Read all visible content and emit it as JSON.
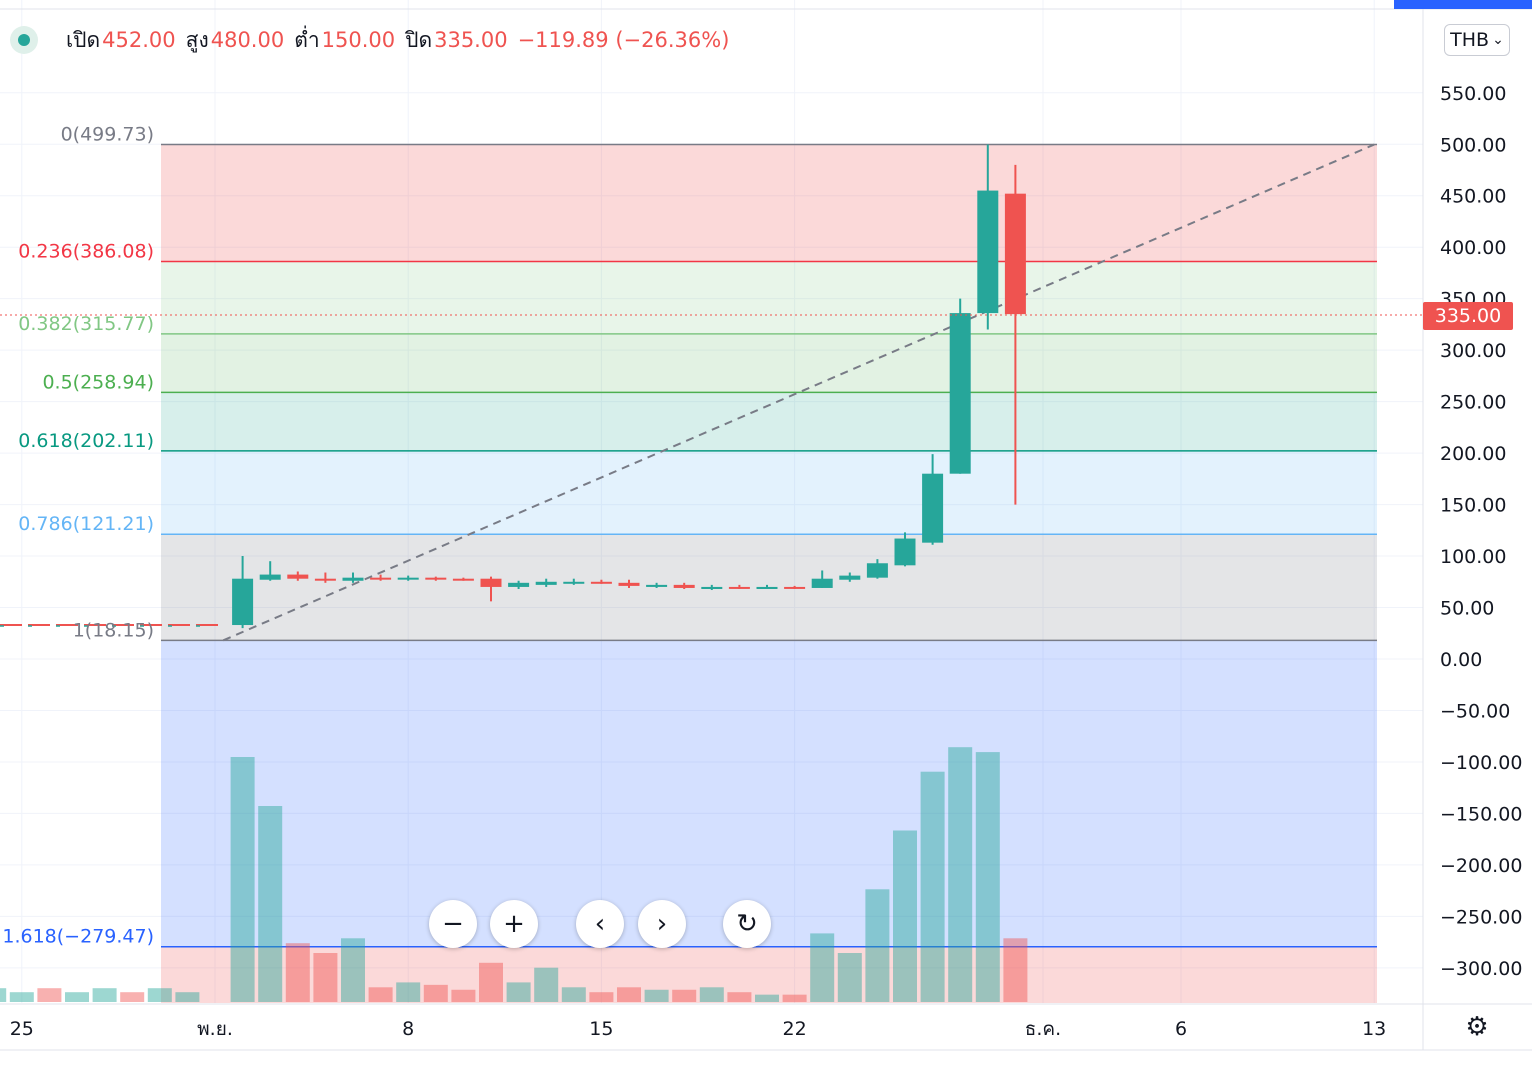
{
  "header": {
    "open_label": "เปิด",
    "open_value": "452.00",
    "high_label": "สูง",
    "high_value": "480.00",
    "low_label": "ต่ำ",
    "low_value": "150.00",
    "close_label": "ปิด",
    "close_value": "335.00",
    "change_value": "−119.89 (−26.36%)"
  },
  "currency_button": "THB",
  "current_price_tag": "335.00",
  "colors": {
    "up": "#26a69a",
    "down": "#ef5350",
    "accent": "#2962ff"
  },
  "nav_controls": [
    "minus-icon",
    "plus-icon",
    "chevron-left-icon",
    "chevron-right-icon",
    "reset-icon"
  ],
  "chart_data": {
    "type": "candlestick",
    "yaxis": {
      "ticks": [
        "550.00",
        "500.00",
        "450.00",
        "400.00",
        "350.00",
        "300.00",
        "250.00",
        "200.00",
        "150.00",
        "100.00",
        "50.00",
        "0.00",
        "−50.00",
        "−100.00",
        "−150.00",
        "−200.00",
        "−250.00",
        "−300.00"
      ],
      "ylim": [
        -335,
        595
      ]
    },
    "xaxis": {
      "ticks": [
        {
          "label": "25",
          "day": -7
        },
        {
          "label": "พ.ย.",
          "day": 0
        },
        {
          "label": "8",
          "day": 7
        },
        {
          "label": "15",
          "day": 14
        },
        {
          "label": "22",
          "day": 21
        },
        {
          "label": "ธ.ค.",
          "day": 30
        },
        {
          "label": "6",
          "day": 35
        },
        {
          "label": "13",
          "day": 42
        }
      ]
    },
    "fib_levels": [
      {
        "label": "0(499.73)",
        "value": 499.73,
        "color": "#787b86",
        "fill": "rgba(239,83,80,0.22)"
      },
      {
        "label": "0.236(386.08)",
        "value": 386.08,
        "color": "#f23645",
        "fill": "rgba(129,199,132,0.18)"
      },
      {
        "label": "0.382(315.77)",
        "value": 315.77,
        "color": "#81c784",
        "fill": "rgba(76,175,80,0.16)"
      },
      {
        "label": "0.5(258.94)",
        "value": 258.94,
        "color": "#4caf50",
        "fill": "rgba(8,153,129,0.16)"
      },
      {
        "label": "0.618(202.11)",
        "value": 202.11,
        "color": "#089981",
        "fill": "rgba(100,181,246,0.18)"
      },
      {
        "label": "0.786(121.21)",
        "value": 121.21,
        "color": "#64b5f6",
        "fill": "rgba(120,123,134,0.2)"
      },
      {
        "label": "1(18.15)",
        "value": 18.15,
        "color": "#787b86",
        "fill": "rgba(41,98,255,0.2)"
      },
      {
        "label": "1.618(−279.47)",
        "value": -279.47,
        "color": "#2962ff",
        "fill": "rgba(239,83,80,0.22)"
      }
    ],
    "candles": [
      {
        "day": 1,
        "o": 33,
        "h": 100,
        "l": 30,
        "c": 78,
        "v": 10
      },
      {
        "day": 2,
        "o": 77,
        "h": 95,
        "l": 76,
        "c": 82,
        "v": 8
      },
      {
        "day": 3,
        "o": 82,
        "h": 85,
        "l": 76,
        "c": 78,
        "v": 2.4
      },
      {
        "day": 4,
        "o": 78,
        "h": 84,
        "l": 74,
        "c": 77,
        "v": 2
      },
      {
        "day": 5,
        "o": 76,
        "h": 84,
        "l": 74,
        "c": 79,
        "v": 2.6
      },
      {
        "day": 6,
        "o": 79,
        "h": 82,
        "l": 76,
        "c": 78,
        "v": 0.6
      },
      {
        "day": 7,
        "o": 78,
        "h": 81,
        "l": 76,
        "c": 79,
        "v": 0.8
      },
      {
        "day": 8,
        "o": 79,
        "h": 80,
        "l": 76,
        "c": 78,
        "v": 0.7
      },
      {
        "day": 9,
        "o": 78,
        "h": 79,
        "l": 76,
        "c": 77,
        "v": 0.5
      },
      {
        "day": 10,
        "o": 78,
        "h": 80,
        "l": 56,
        "c": 70,
        "v": 1.6
      },
      {
        "day": 11,
        "o": 70,
        "h": 76,
        "l": 68,
        "c": 74,
        "v": 0.8
      },
      {
        "day": 12,
        "o": 72,
        "h": 78,
        "l": 70,
        "c": 75,
        "v": 1.4
      },
      {
        "day": 13,
        "o": 74,
        "h": 78,
        "l": 72,
        "c": 75,
        "v": 0.6
      },
      {
        "day": 14,
        "o": 75,
        "h": 77,
        "l": 73,
        "c": 74,
        "v": 0.4
      },
      {
        "day": 15,
        "o": 74,
        "h": 77,
        "l": 69,
        "c": 71,
        "v": 0.6
      },
      {
        "day": 16,
        "o": 70,
        "h": 74,
        "l": 69,
        "c": 72,
        "v": 0.5
      },
      {
        "day": 17,
        "o": 72,
        "h": 74,
        "l": 68,
        "c": 69,
        "v": 0.5
      },
      {
        "day": 18,
        "o": 68,
        "h": 72,
        "l": 67,
        "c": 70,
        "v": 0.6
      },
      {
        "day": 19,
        "o": 70,
        "h": 72,
        "l": 68,
        "c": 69,
        "v": 0.4
      },
      {
        "day": 20,
        "o": 68,
        "h": 72,
        "l": 68,
        "c": 70,
        "v": 0.3
      },
      {
        "day": 21,
        "o": 70,
        "h": 71,
        "l": 68,
        "c": 69,
        "v": 0.3
      },
      {
        "day": 22,
        "o": 69,
        "h": 86,
        "l": 69,
        "c": 78,
        "v": 2.8
      },
      {
        "day": 23,
        "o": 77,
        "h": 84,
        "l": 75,
        "c": 81,
        "v": 2
      },
      {
        "day": 24,
        "o": 79,
        "h": 97,
        "l": 78,
        "c": 93,
        "v": 4.6
      },
      {
        "day": 25,
        "o": 91,
        "h": 123,
        "l": 90,
        "c": 117,
        "v": 7
      },
      {
        "day": 26,
        "o": 113,
        "h": 199,
        "l": 111,
        "c": 180,
        "v": 9.4
      },
      {
        "day": 27,
        "o": 180,
        "h": 350,
        "l": 180,
        "c": 336,
        "v": 10.4
      },
      {
        "day": 28,
        "o": 336,
        "h": 499.73,
        "l": 320,
        "c": 455,
        "v": 10.2
      },
      {
        "day": 29,
        "o": 452,
        "h": 480,
        "l": 150,
        "c": 335,
        "v": 2.6
      }
    ],
    "pre_history": {
      "from_day": -8,
      "to_day": 0,
      "value": 33,
      "v": 0.4
    },
    "trend_line": {
      "from": {
        "day": 0.3,
        "value": 18.15
      },
      "to": {
        "day": 42,
        "value": 499.73
      }
    }
  }
}
